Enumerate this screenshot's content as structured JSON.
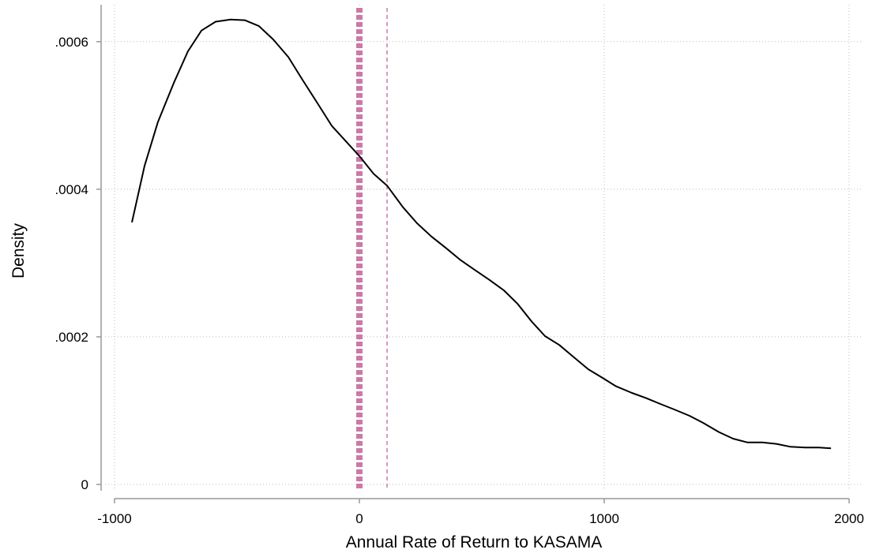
{
  "chart_data": {
    "type": "line",
    "xlabel": "Annual Rate of Return to KASAMA",
    "ylabel": "Density",
    "x": [
      -929,
      -877,
      -823,
      -758,
      -700,
      -645,
      -587,
      -526,
      -468,
      -410,
      -352,
      -290,
      -232,
      -174,
      -113,
      -58,
      0,
      58,
      113,
      177,
      235,
      294,
      355,
      413,
      474,
      532,
      590,
      645,
      703,
      758,
      816,
      877,
      935,
      990,
      1048,
      1113,
      1171,
      1229,
      1290,
      1348,
      1406,
      1468,
      1526,
      1584,
      1645,
      1703,
      1761,
      1819,
      1877,
      1926
    ],
    "values": [
      0.000355,
      0.000432,
      0.000491,
      0.000544,
      0.000587,
      0.000615,
      0.000627,
      0.00063,
      0.000629,
      0.000621,
      0.000603,
      0.000579,
      0.000548,
      0.000518,
      0.000486,
      0.000466,
      0.000445,
      0.000421,
      0.000405,
      0.000376,
      0.000354,
      0.000336,
      0.00032,
      0.000304,
      0.00029,
      0.000277,
      0.000263,
      0.000245,
      0.000221,
      0.000201,
      0.000189,
      0.000172,
      0.000156,
      0.000145,
      0.000133,
      0.000124,
      0.000117,
      0.000109,
      0.000101,
      9.3e-05,
      8.3e-05,
      7.1e-05,
      6.2e-05,
      5.7e-05,
      5.7e-05,
      5.5e-05,
      5.1e-05,
      5e-05,
      5e-05,
      4.9e-05
    ],
    "color": "#000000",
    "xlim": [
      -1000,
      2000
    ],
    "xticks": [
      -1000,
      0,
      1000,
      2000
    ],
    "ylim": [
      0,
      0.00065
    ],
    "yticks": [
      0,
      {
        "value": 0.0002,
        "label": ".0002"
      },
      {
        "value": 0.0004,
        "label": ".0004"
      },
      {
        "value": 0.0006,
        "label": ".0006"
      }
    ],
    "grid": true,
    "vlines": [
      {
        "value": 0,
        "style": "thick",
        "color": "#cc79a7"
      },
      {
        "value": 113,
        "style": "thin",
        "color": "#cc79a7"
      }
    ]
  }
}
